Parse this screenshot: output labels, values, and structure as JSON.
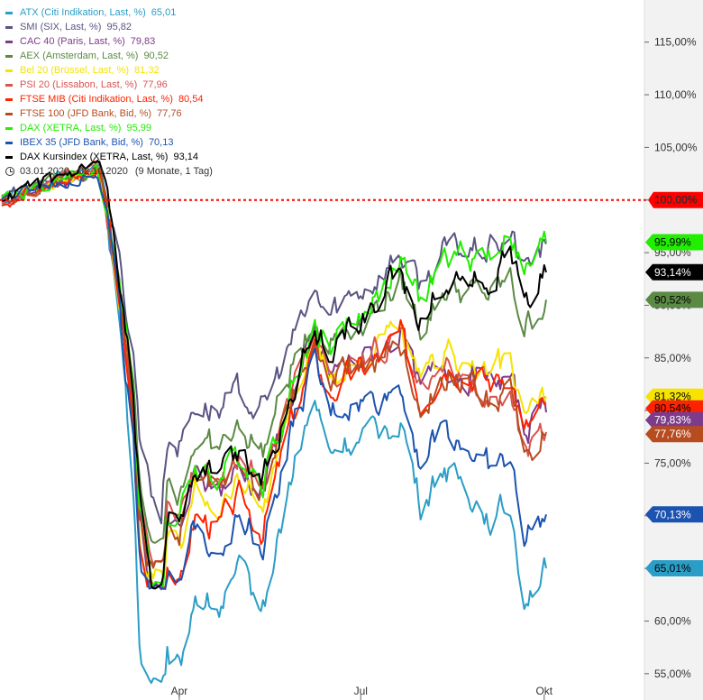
{
  "chart_data": {
    "type": "line",
    "y_unit": "%",
    "ylim": [
      52.5,
      119
    ],
    "y_ticks": [
      "115,00%",
      "110,00%",
      "105,00%",
      "100,00%",
      "95,00%",
      "90,00%",
      "85,00%",
      "80,00%",
      "75,00%",
      "70,00%",
      "65,00%",
      "60,00%",
      "55,00%"
    ],
    "x_ticks": [
      "Apr",
      "Jul",
      "Okt"
    ],
    "reference_line": {
      "value": 100,
      "label": "100,00%",
      "color": "#ff0000"
    },
    "period": "03.01.2020 - 02.10.2020",
    "period_span": "(9 Monate, 1 Tag)",
    "anchor_points": [
      {
        "date": "2020-01-03",
        "v": 100
      },
      {
        "date": "2020-02-20",
        "v": 103
      },
      {
        "date": "2020-02-24",
        "v": 100
      },
      {
        "date": "2020-03-02",
        "v": 92
      },
      {
        "date": "2020-03-09",
        "v": 82
      },
      {
        "date": "2020-03-12",
        "v": 73
      },
      {
        "date": "2020-03-18",
        "v": 66
      },
      {
        "date": "2020-03-23",
        "v": 63
      },
      {
        "date": "2020-03-26",
        "v": 72
      },
      {
        "date": "2020-04-01",
        "v": 71
      },
      {
        "date": "2020-04-09",
        "v": 76
      },
      {
        "date": "2020-04-21",
        "v": 75
      },
      {
        "date": "2020-05-01",
        "v": 77
      },
      {
        "date": "2020-05-13",
        "v": 75
      },
      {
        "date": "2020-05-27",
        "v": 83
      },
      {
        "date": "2020-06-08",
        "v": 88
      },
      {
        "date": "2020-06-15",
        "v": 85
      },
      {
        "date": "2020-06-22",
        "v": 86
      },
      {
        "date": "2020-07-06",
        "v": 87
      },
      {
        "date": "2020-07-21",
        "v": 89
      },
      {
        "date": "2020-07-31",
        "v": 84
      },
      {
        "date": "2020-08-12",
        "v": 87
      },
      {
        "date": "2020-08-24",
        "v": 86
      },
      {
        "date": "2020-09-04",
        "v": 85
      },
      {
        "date": "2020-09-14",
        "v": 86
      },
      {
        "date": "2020-09-21",
        "v": 81
      },
      {
        "date": "2020-10-02",
        "v": 83
      }
    ],
    "series": [
      {
        "name": "ATX (Citi Indikation, Last, %)",
        "last": "65,01",
        "value": 65.01,
        "color": "#2a9ec7",
        "scale": 1.55,
        "min": 54
      },
      {
        "name": "SMI (SIX, Last, %)",
        "last": "95,82",
        "value": 95.82,
        "color": "#595582",
        "scale": 0.8,
        "min": 69
      },
      {
        "name": "CAC 40 (Paris, Last, %)",
        "last": "79,83",
        "value": 79.83,
        "color": "#7d3b8a",
        "scale": 1.1,
        "min": 63
      },
      {
        "name": "AEX (Amsterdam, Last, %)",
        "last": "90,52",
        "value": 90.52,
        "color": "#5b8a45",
        "scale": 0.95,
        "min": 67
      },
      {
        "name": "Bel 20 (Brüssel, Last, %)",
        "last": "81,32",
        "value": 81.32,
        "color": "#f6e300",
        "scale": 1.15,
        "min": 64
      },
      {
        "name": "PSI 20 (Lissabon, Last, %)",
        "last": "77,96",
        "value": 77.96,
        "color": "#d9534f",
        "scale": 1.05,
        "min": 65
      },
      {
        "name": "FTSE MIB (Citi Indikation, Last, %)",
        "last": "80,54",
        "value": 80.54,
        "color": "#ff2200",
        "scale": 1.25,
        "min": 63
      },
      {
        "name": "FTSE 100 (JFD Bank, Bid, %)",
        "last": "77,76",
        "value": 77.76,
        "color": "#b84c21",
        "scale": 1.1,
        "min": 65
      },
      {
        "name": "DAX (XETRA, Last, %)",
        "last": "95,99",
        "value": 95.99,
        "color": "#22ee00",
        "scale": 1.05,
        "min": 63
      },
      {
        "name": "IBEX 35 (JFD Bank, Bid, %)",
        "last": "70,13",
        "value": 70.13,
        "color": "#1c53b0",
        "scale": 1.3,
        "min": 63
      },
      {
        "name": "DAX Kursindex (XETRA, Last, %)",
        "last": "93,14",
        "value": 93.14,
        "color": "#000000",
        "scale": 1.05,
        "min": 63
      }
    ],
    "end_badges": [
      {
        "label": "95,99%",
        "value": 95.99,
        "color": "#22ee00",
        "text_color": "#000000"
      },
      {
        "label": "93,14%",
        "value": 93.14,
        "color": "#000000",
        "text_color": "#ffffff"
      },
      {
        "label": "90,52%",
        "value": 90.52,
        "color": "#5b8a45",
        "text_color": "#000000"
      },
      {
        "label": "81,32%",
        "value": 81.32,
        "color": "#f6e300",
        "text_color": "#000000"
      },
      {
        "label": "80,54%",
        "value": 80.54,
        "color": "#ff2200",
        "text_color": "#000000"
      },
      {
        "label": "79,83%",
        "value": 79.83,
        "color": "#7d3b8a",
        "text_color": "#ffffff"
      },
      {
        "label": "77,76%",
        "value": 77.76,
        "color": "#b84c21",
        "text_color": "#ffffff"
      },
      {
        "label": "70,13%",
        "value": 70.13,
        "color": "#1c53b0",
        "text_color": "#ffffff"
      },
      {
        "label": "65,01%",
        "value": 65.01,
        "color": "#2a9ec7",
        "text_color": "#000000"
      }
    ]
  }
}
